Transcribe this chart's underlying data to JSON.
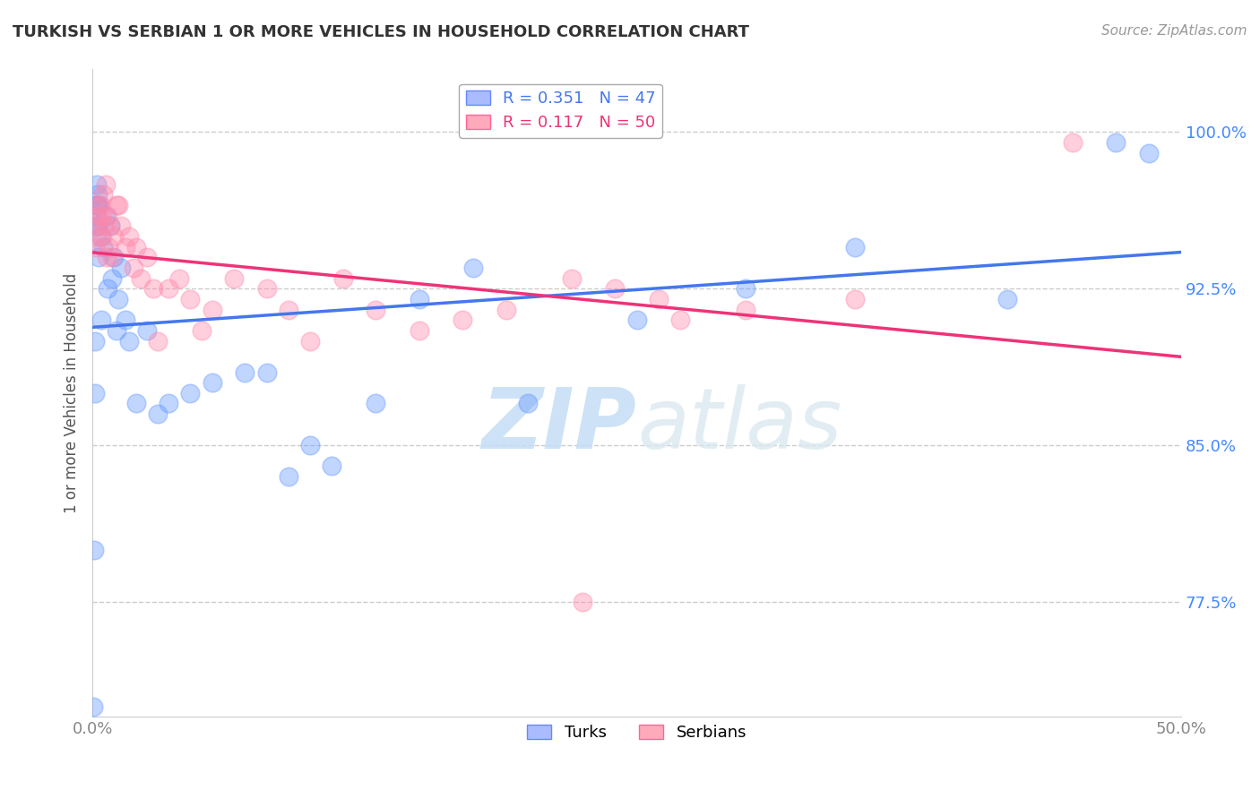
{
  "title": "TURKISH VS SERBIAN 1 OR MORE VEHICLES IN HOUSEHOLD CORRELATION CHART",
  "source": "Source: ZipAtlas.com",
  "ylabel": "1 or more Vehicles in Household",
  "xlim": [
    0.0,
    50.0
  ],
  "ylim": [
    72.0,
    103.0
  ],
  "x_ticks": [
    0.0,
    50.0
  ],
  "x_tick_labels": [
    "0.0%",
    "50.0%"
  ],
  "y_ticks": [
    77.5,
    85.0,
    92.5,
    100.0
  ],
  "y_tick_labels": [
    "77.5%",
    "85.0%",
    "92.5%",
    "100.0%"
  ],
  "turks_color": "#6699ff",
  "serbians_color": "#ff88aa",
  "watermark_zip": "ZIP",
  "watermark_atlas": "atlas",
  "background_color": "#ffffff",
  "grid_color": "#cccccc",
  "turks_x": [
    0.05,
    0.08,
    0.1,
    0.12,
    0.15,
    0.18,
    0.2,
    0.25,
    0.3,
    0.35,
    0.4,
    0.5,
    0.6,
    0.7,
    0.8,
    0.9,
    1.0,
    1.1,
    1.2,
    1.3,
    1.5,
    1.7,
    2.0,
    2.5,
    3.0,
    3.5,
    4.5,
    5.5,
    7.0,
    8.0,
    9.0,
    10.0,
    11.0,
    13.0,
    15.0,
    17.5,
    20.0,
    25.0,
    30.0,
    35.0,
    42.0,
    47.0,
    48.5,
    0.15,
    0.2,
    0.25,
    0.3
  ],
  "turks_y": [
    72.5,
    80.0,
    87.5,
    90.0,
    95.5,
    96.5,
    97.5,
    95.5,
    94.0,
    95.0,
    91.0,
    94.5,
    96.0,
    92.5,
    95.5,
    93.0,
    94.0,
    90.5,
    92.0,
    93.5,
    91.0,
    90.0,
    87.0,
    90.5,
    86.5,
    87.0,
    87.5,
    88.0,
    88.5,
    88.5,
    83.5,
    85.0,
    84.0,
    87.0,
    92.0,
    93.5,
    87.0,
    91.0,
    92.5,
    94.5,
    92.0,
    99.5,
    99.0,
    96.0,
    96.5,
    97.0,
    96.5
  ],
  "serbians_x": [
    0.1,
    0.2,
    0.3,
    0.4,
    0.5,
    0.6,
    0.7,
    0.8,
    0.9,
    1.0,
    1.1,
    1.2,
    1.3,
    1.5,
    1.7,
    1.9,
    2.0,
    2.2,
    2.5,
    2.8,
    3.0,
    3.5,
    4.0,
    4.5,
    5.0,
    5.5,
    6.5,
    8.0,
    9.0,
    10.0,
    11.5,
    13.0,
    15.0,
    17.0,
    19.0,
    22.0,
    22.5,
    24.0,
    26.0,
    27.0,
    30.0,
    35.0,
    45.0,
    0.15,
    0.25,
    0.35,
    0.45,
    0.55,
    0.65,
    0.75
  ],
  "serbians_y": [
    94.5,
    95.5,
    96.5,
    96.0,
    97.0,
    97.5,
    96.0,
    95.5,
    94.0,
    95.0,
    96.5,
    96.5,
    95.5,
    94.5,
    95.0,
    93.5,
    94.5,
    93.0,
    94.0,
    92.5,
    90.0,
    92.5,
    93.0,
    92.0,
    90.5,
    91.5,
    93.0,
    92.5,
    91.5,
    90.0,
    93.0,
    91.5,
    90.5,
    91.0,
    91.5,
    93.0,
    77.5,
    92.5,
    92.0,
    91.0,
    91.5,
    92.0,
    99.5,
    95.0,
    96.0,
    96.5,
    95.0,
    95.5,
    94.0,
    94.5
  ]
}
